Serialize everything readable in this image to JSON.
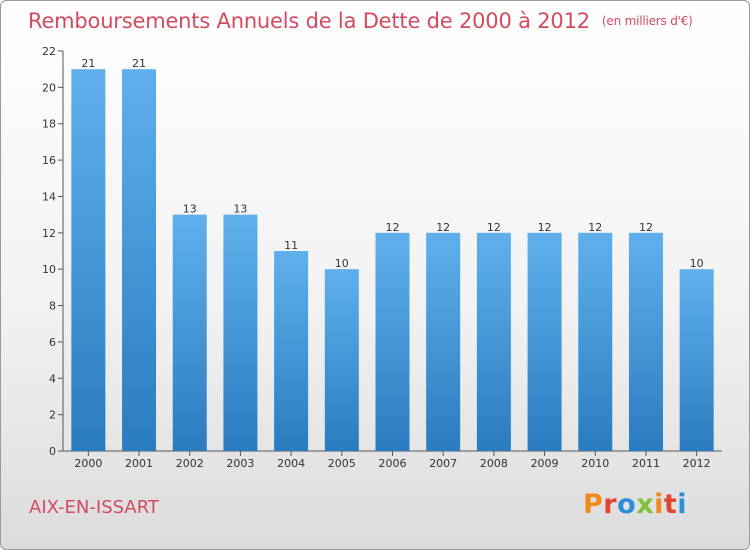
{
  "chart_data": {
    "type": "bar",
    "title": "Remboursements Annuels de la Dette de 2000 à 2012",
    "unit": "(en milliers d'€)",
    "categories": [
      "2000",
      "2001",
      "2002",
      "2003",
      "2004",
      "2005",
      "2006",
      "2007",
      "2008",
      "2009",
      "2010",
      "2011",
      "2012"
    ],
    "values": [
      21,
      21,
      13,
      13,
      11,
      10,
      12,
      12,
      12,
      12,
      12,
      12,
      10
    ],
    "ylim": [
      0,
      22
    ],
    "yticks": [
      0,
      2,
      4,
      6,
      8,
      10,
      12,
      14,
      16,
      18,
      20,
      22
    ],
    "grid": false,
    "bar_color": "#4ea2e3"
  },
  "footer": {
    "commune": "AIX-EN-ISSART",
    "logo": "Proxiti"
  },
  "colors": {
    "title": "#d44a5f",
    "logo_letters": [
      "#f08a1c",
      "#e0452f",
      "#2a8fd6",
      "#7cc13a",
      "#f08a1c",
      "#e0452f",
      "#2a8fd6"
    ]
  }
}
